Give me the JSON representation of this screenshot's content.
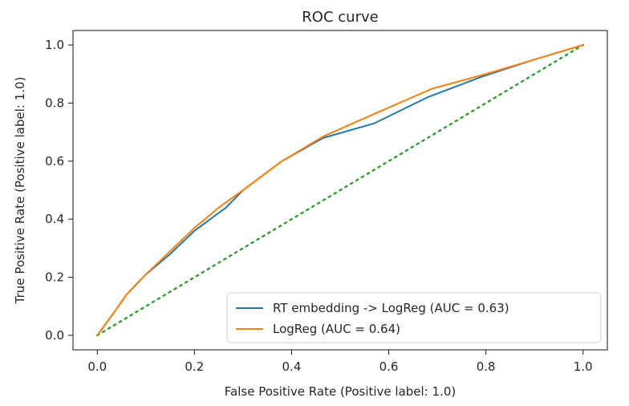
{
  "chart_data": {
    "type": "line",
    "title": "ROC curve",
    "xlabel": "False Positive Rate (Positive label: 1.0)",
    "ylabel": "True Positive Rate (Positive label: 1.0)",
    "xlim": [
      -0.05,
      1.05
    ],
    "ylim": [
      -0.05,
      1.05
    ],
    "xticks": [
      0.0,
      0.2,
      0.4,
      0.6,
      0.8,
      1.0
    ],
    "xtick_labels": [
      "0.0",
      "0.2",
      "0.4",
      "0.6",
      "0.8",
      "1.0"
    ],
    "yticks": [
      0.0,
      0.2,
      0.4,
      0.6,
      0.8,
      1.0
    ],
    "ytick_labels": [
      "0.0",
      "0.2",
      "0.4",
      "0.6",
      "0.8",
      "1.0"
    ],
    "grid": false,
    "legend_position": "bottom-right",
    "series": [
      {
        "name": "RT embedding -> LogReg (AUC = 0.63)",
        "color": "#1f77b4",
        "x": [
          0.0,
          0.035,
          0.06,
          0.1,
          0.15,
          0.2,
          0.265,
          0.3,
          0.38,
          0.465,
          0.57,
          0.68,
          0.79,
          0.9,
          1.0
        ],
        "y": [
          0.0,
          0.08,
          0.14,
          0.21,
          0.28,
          0.36,
          0.44,
          0.5,
          0.6,
          0.68,
          0.73,
          0.82,
          0.89,
          0.95,
          1.0
        ]
      },
      {
        "name": "LogReg (AUC = 0.64)",
        "color": "#ff7f0e",
        "x": [
          0.0,
          0.035,
          0.06,
          0.1,
          0.15,
          0.2,
          0.25,
          0.3,
          0.38,
          0.465,
          0.58,
          0.69,
          0.8,
          0.9,
          1.0
        ],
        "y": [
          0.0,
          0.08,
          0.14,
          0.21,
          0.29,
          0.37,
          0.44,
          0.5,
          0.6,
          0.685,
          0.77,
          0.85,
          0.9,
          0.95,
          1.0
        ]
      }
    ],
    "chance_line": {
      "style": "dotted",
      "color": "#2ca02c",
      "x": [
        0.0,
        1.0
      ],
      "y": [
        0.0,
        1.0
      ]
    }
  }
}
